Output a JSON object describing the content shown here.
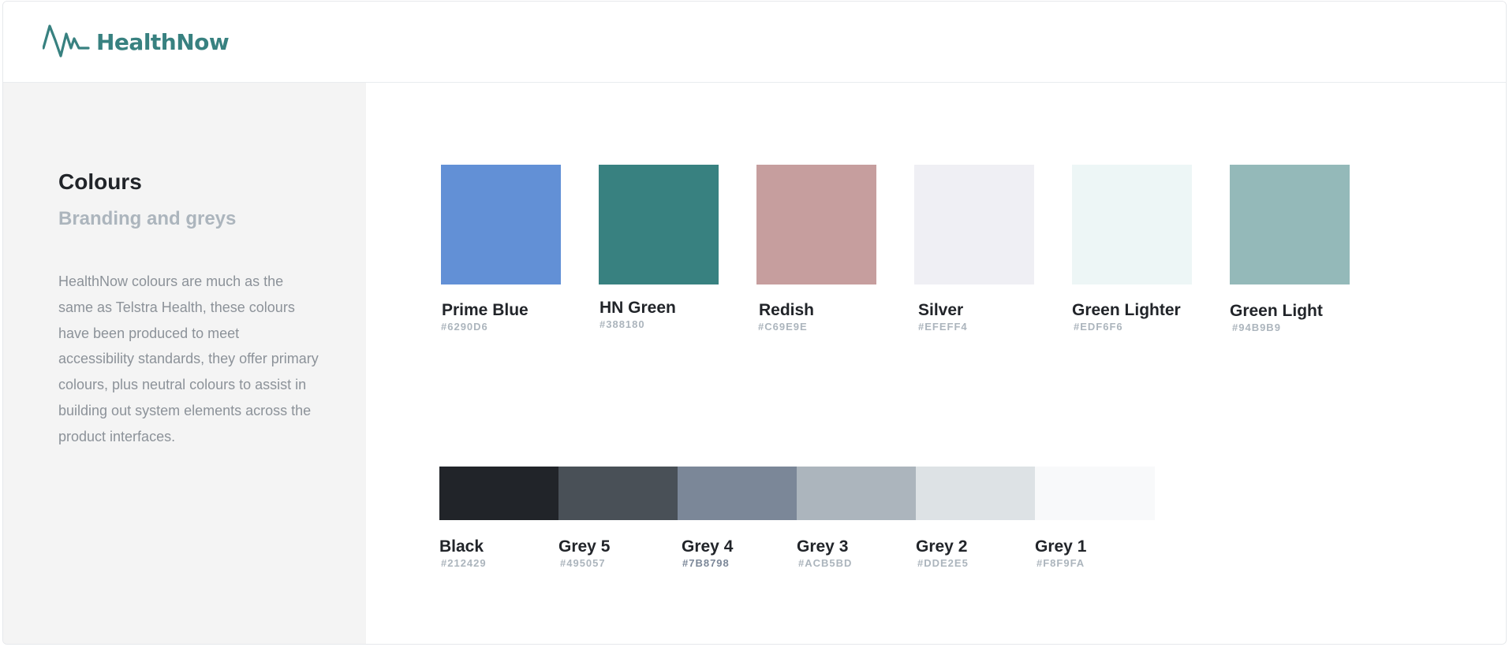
{
  "brand": {
    "name": "HealthNow",
    "color": "#388180"
  },
  "sidebar": {
    "title": "Colours",
    "subtitle": "Branding and greys",
    "description": "HealthNow colours are much as the same as Telstra Health, these colours have been produced to meet accessibility standards, they offer primary colours, plus neutral colours to assist in building out system elements across the product interfaces."
  },
  "primary_colours": [
    {
      "name": "Prime Blue",
      "hex": "#6290D6"
    },
    {
      "name": "HN Green",
      "hex": "#388180"
    },
    {
      "name": "Redish",
      "hex": "#C69E9E"
    },
    {
      "name": "Silver",
      "hex": "#EFEFF4"
    },
    {
      "name": "Green Lighter",
      "hex": "#EDF6F6"
    },
    {
      "name": "Green Light",
      "hex": "#94B9B9"
    }
  ],
  "greys": [
    {
      "name": "Black",
      "hex": "#212429"
    },
    {
      "name": "Grey 5",
      "hex": "#495057"
    },
    {
      "name": "Grey 4",
      "hex": "#7B8798"
    },
    {
      "name": "Grey 3",
      "hex": "#ACB5BD"
    },
    {
      "name": "Grey 2",
      "hex": "#DDE2E5"
    },
    {
      "name": "Grey 1",
      "hex": "#F8F9FA"
    }
  ]
}
